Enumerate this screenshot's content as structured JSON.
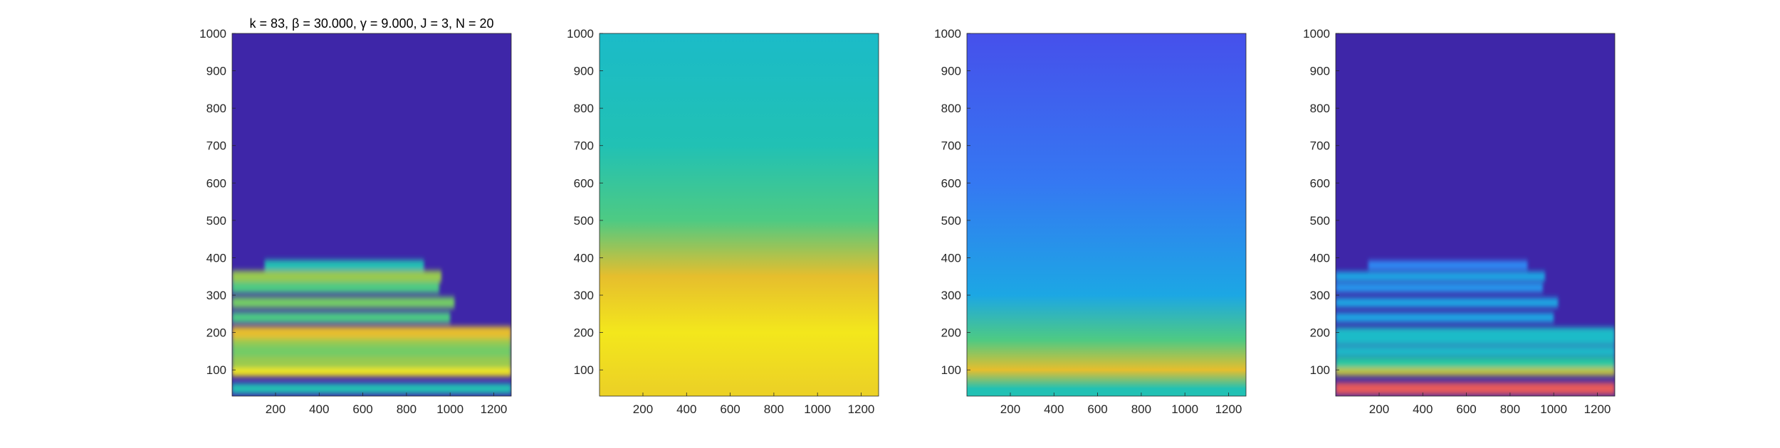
{
  "chart_data": [
    {
      "type": "heatmap",
      "title": "k = 83, β = 30.000, γ = 9.000, J = 3, N = 20",
      "xlabel": "",
      "ylabel": "",
      "xlim": [
        1,
        1280
      ],
      "ylim": [
        30,
        1000
      ],
      "xticks": [
        200,
        400,
        600,
        800,
        1000,
        1200
      ],
      "yticks": [
        100,
        200,
        300,
        400,
        500,
        600,
        700,
        800,
        900,
        1000
      ],
      "colormap": "parula",
      "background_color": "#3e26a8",
      "bands": [
        {
          "y": 50,
          "x_from": 1,
          "x_to": 1280,
          "intensity": 0.55
        },
        {
          "y": 100,
          "x_from": 1,
          "x_to": 1280,
          "intensity": 0.95
        },
        {
          "y": 120,
          "x_from": 1,
          "x_to": 1280,
          "intensity": 0.75
        },
        {
          "y": 150,
          "x_from": 1,
          "x_to": 1280,
          "intensity": 0.7
        },
        {
          "y": 180,
          "x_from": 1,
          "x_to": 1280,
          "intensity": 0.75
        },
        {
          "y": 200,
          "x_from": 1,
          "x_to": 1280,
          "intensity": 0.85
        },
        {
          "y": 240,
          "x_from": 1,
          "x_to": 1000,
          "intensity": 0.65
        },
        {
          "y": 280,
          "x_from": 1,
          "x_to": 1020,
          "intensity": 0.7
        },
        {
          "y": 320,
          "x_from": 1,
          "x_to": 950,
          "intensity": 0.65
        },
        {
          "y": 350,
          "x_from": 1,
          "x_to": 960,
          "intensity": 0.75
        },
        {
          "y": 380,
          "x_from": 150,
          "x_to": 880,
          "intensity": 0.55
        }
      ]
    },
    {
      "type": "heatmap",
      "title": "",
      "xlabel": "",
      "ylabel": "",
      "xlim": [
        1,
        1280
      ],
      "ylim": [
        30,
        1000
      ],
      "xticks": [
        200,
        400,
        600,
        800,
        1000,
        1200
      ],
      "yticks": [
        100,
        200,
        300,
        400,
        500,
        600,
        700,
        800,
        900,
        1000
      ],
      "colormap": "parula",
      "description_levels": [
        {
          "y": 1000,
          "intensity": 0.5
        },
        {
          "y": 700,
          "intensity": 0.55
        },
        {
          "y": 500,
          "intensity": 0.65
        },
        {
          "y": 350,
          "intensity": 0.85
        },
        {
          "y": 200,
          "intensity": 0.95
        },
        {
          "y": 50,
          "intensity": 0.9
        }
      ]
    },
    {
      "type": "heatmap",
      "title": "",
      "xlabel": "",
      "ylabel": "",
      "xlim": [
        1,
        1280
      ],
      "ylim": [
        30,
        1000
      ],
      "xticks": [
        200,
        400,
        600,
        800,
        1000,
        1200
      ],
      "yticks": [
        100,
        200,
        300,
        400,
        500,
        600,
        700,
        800,
        900,
        1000
      ],
      "colormap": "parula",
      "description_levels": [
        {
          "y": 1000,
          "intensity": 0.15
        },
        {
          "y": 600,
          "intensity": 0.25
        },
        {
          "y": 300,
          "intensity": 0.4
        },
        {
          "y": 180,
          "intensity": 0.65
        },
        {
          "y": 100,
          "intensity": 0.85
        },
        {
          "y": 50,
          "intensity": 0.55
        }
      ]
    },
    {
      "type": "heatmap",
      "title": "",
      "xlabel": "",
      "ylabel": "",
      "xlim": [
        1,
        1280
      ],
      "ylim": [
        30,
        1000
      ],
      "xticks": [
        200,
        400,
        600,
        800,
        1000,
        1200
      ],
      "yticks": [
        100,
        200,
        300,
        400,
        500,
        600,
        700,
        800,
        900,
        1000
      ],
      "colormap": "parula",
      "background_color": "#3e26a8",
      "bands": [
        {
          "y": 50,
          "x_from": 1,
          "x_to": 1280,
          "intensity": 0.9,
          "color": "#e85a5a"
        },
        {
          "y": 100,
          "x_from": 1,
          "x_to": 1280,
          "intensity": 0.8
        },
        {
          "y": 120,
          "x_from": 1,
          "x_to": 1280,
          "intensity": 0.6
        },
        {
          "y": 150,
          "x_from": 1,
          "x_to": 1280,
          "intensity": 0.5
        },
        {
          "y": 180,
          "x_from": 1,
          "x_to": 1280,
          "intensity": 0.5
        },
        {
          "y": 200,
          "x_from": 1,
          "x_to": 1280,
          "intensity": 0.5
        },
        {
          "y": 240,
          "x_from": 1,
          "x_to": 1000,
          "intensity": 0.4
        },
        {
          "y": 280,
          "x_from": 1,
          "x_to": 1020,
          "intensity": 0.4
        },
        {
          "y": 320,
          "x_from": 1,
          "x_to": 950,
          "intensity": 0.35
        },
        {
          "y": 350,
          "x_from": 1,
          "x_to": 960,
          "intensity": 0.4
        },
        {
          "y": 380,
          "x_from": 150,
          "x_to": 880,
          "intensity": 0.3
        }
      ]
    }
  ]
}
